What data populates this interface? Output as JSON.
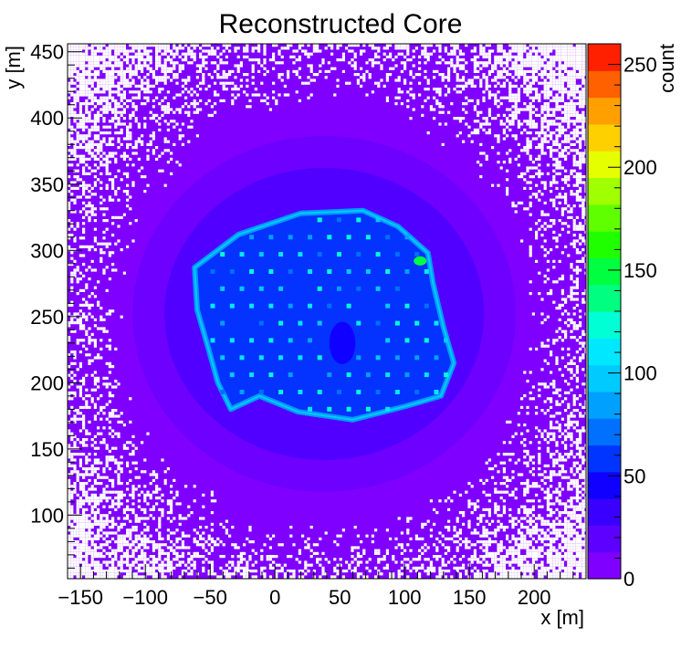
{
  "chart_data": {
    "type": "heatmap",
    "title": "Reconstructed Core",
    "xlabel": "x [m]",
    "ylabel": "y [m]",
    "zlabel": "count",
    "xlim": [
      -160,
      240
    ],
    "ylim": [
      52,
      456
    ],
    "zlim": [
      0,
      260
    ],
    "x_ticks": [
      -150,
      -100,
      -50,
      0,
      50,
      100,
      150,
      200
    ],
    "x_tick_labels": [
      "−150",
      "−100",
      "−50",
      "0",
      "50",
      "100",
      "150",
      "200"
    ],
    "y_ticks": [
      100,
      150,
      200,
      250,
      300,
      350,
      400,
      450
    ],
    "y_tick_labels": [
      "100",
      "150",
      "200",
      "250",
      "300",
      "350",
      "400",
      "450"
    ],
    "z_ticks": [
      0,
      50,
      100,
      150,
      200,
      250
    ],
    "z_tick_labels": [
      "0",
      "50",
      "100",
      "150",
      "200",
      "250"
    ],
    "colorbar_levels": 20,
    "colorbar_colors": [
      "#8000ff",
      "#5d00ff",
      "#3a00ff",
      "#1000ff",
      "#0035ff",
      "#0070ff",
      "#00a0ff",
      "#00caff",
      "#00e8ff",
      "#00ffd5",
      "#00ff80",
      "#00ff40",
      "#20ff00",
      "#60ff00",
      "#a0ff00",
      "#e6ff00",
      "#ffd000",
      "#ffa000",
      "#ff6000",
      "#ff2000"
    ],
    "empty_bin_color": "#ffffff",
    "grid": false,
    "dense_region": {
      "outline": [
        [
          -62,
          287
        ],
        [
          -28,
          312
        ],
        [
          20,
          328
        ],
        [
          68,
          330
        ],
        [
          95,
          318
        ],
        [
          118,
          298
        ],
        [
          122,
          275
        ],
        [
          130,
          242
        ],
        [
          138,
          215
        ],
        [
          128,
          190
        ],
        [
          100,
          182
        ],
        [
          60,
          172
        ],
        [
          18,
          178
        ],
        [
          -12,
          190
        ],
        [
          -34,
          180
        ],
        [
          -44,
          200
        ],
        [
          -52,
          228
        ],
        [
          -60,
          255
        ]
      ],
      "level_count": 45,
      "hole": {
        "x": 52,
        "y": 230,
        "rx": 10,
        "ry": 16
      },
      "hot_spot": {
        "x": 112,
        "y": 292,
        "count": 145
      }
    },
    "detector_grid": {
      "spacing_x": 15,
      "spacing_y": 13,
      "row_offset_x": 7.5,
      "origin": [
        -48,
        180
      ],
      "count_range": [
        60,
        130
      ]
    }
  }
}
